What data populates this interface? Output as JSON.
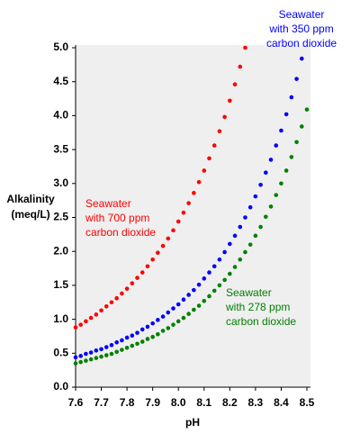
{
  "chart_data": {
    "type": "scatter",
    "xlabel": "pH",
    "ylabel": "Alkalinity (meq/L)",
    "x": [
      7.6,
      7.62,
      7.64,
      7.66,
      7.68,
      7.7,
      7.72,
      7.74,
      7.76,
      7.78,
      7.8,
      7.82,
      7.84,
      7.86,
      7.88,
      7.9,
      7.92,
      7.94,
      7.96,
      7.98,
      8.0,
      8.02,
      8.04,
      8.06,
      8.08,
      8.1,
      8.12,
      8.14,
      8.16,
      8.18,
      8.2,
      8.22,
      8.24,
      8.26,
      8.28,
      8.3,
      8.32,
      8.34,
      8.36,
      8.38,
      8.4,
      8.42,
      8.44,
      8.46,
      8.48,
      8.5
    ],
    "series": [
      {
        "color": "#ff0000",
        "values": [
          0.88,
          0.92,
          0.97,
          1.02,
          1.07,
          1.13,
          1.19,
          1.25,
          1.31,
          1.38,
          1.45,
          1.53,
          1.61,
          1.69,
          1.78,
          1.88,
          1.98,
          2.08,
          2.19,
          2.31,
          2.44,
          2.57,
          2.71,
          2.86,
          3.02,
          3.19,
          3.37,
          3.56,
          3.77,
          3.98,
          4.22,
          4.46,
          4.72,
          5.0,
          null,
          null,
          null,
          null,
          null,
          null,
          null,
          null,
          null,
          null,
          null,
          null
        ]
      },
      {
        "color": "#0000ff",
        "values": [
          0.44,
          0.46,
          0.49,
          0.51,
          0.54,
          0.56,
          0.59,
          0.62,
          0.66,
          0.69,
          0.73,
          0.76,
          0.8,
          0.85,
          0.89,
          0.94,
          0.99,
          1.04,
          1.1,
          1.16,
          1.22,
          1.29,
          1.36,
          1.43,
          1.51,
          1.6,
          1.69,
          1.78,
          1.88,
          1.99,
          2.11,
          2.23,
          2.36,
          2.5,
          2.65,
          2.81,
          2.98,
          3.16,
          3.35,
          3.56,
          3.78,
          4.02,
          4.27,
          4.54,
          4.84,
          null
        ]
      },
      {
        "color": "#008000",
        "values": [
          0.35,
          0.37,
          0.39,
          0.41,
          0.43,
          0.45,
          0.47,
          0.49,
          0.52,
          0.55,
          0.58,
          0.61,
          0.64,
          0.67,
          0.71,
          0.74,
          0.78,
          0.83,
          0.87,
          0.92,
          0.97,
          1.02,
          1.08,
          1.14,
          1.2,
          1.27,
          1.34,
          1.42,
          1.5,
          1.58,
          1.67,
          1.77,
          1.88,
          1.99,
          2.1,
          2.23,
          2.36,
          2.51,
          2.66,
          2.83,
          3.0,
          3.19,
          3.39,
          3.61,
          3.84,
          4.09
        ]
      }
    ],
    "annotations": [
      {
        "lines": [
          "Seawater",
          "with 700 ppm",
          "carbon dioxide"
        ],
        "color": "#ff0000"
      },
      {
        "lines": [
          "Seawater",
          "with 350 ppm",
          "carbon dioxide"
        ],
        "color": "#0000ff"
      },
      {
        "lines": [
          "Seawater",
          "with 278 ppm",
          "carbon dioxide"
        ],
        "color": "#008000"
      }
    ],
    "xlim": [
      7.6,
      8.5
    ],
    "xticks": [
      7.6,
      7.7,
      7.8,
      7.9,
      {
        "value": 8,
        "label": "8.0"
      },
      8.1,
      8.2,
      8.3,
      8.4,
      8.5
    ],
    "ylim": [
      0,
      5
    ],
    "yticks": [
      {
        "value": 0,
        "label": "0.0"
      },
      0.5,
      {
        "value": 1,
        "label": "1.0"
      },
      1.5,
      {
        "value": 2,
        "label": "2.0"
      },
      2.5,
      {
        "value": 3,
        "label": "3.0"
      },
      3.5,
      {
        "value": 4,
        "label": "4.0"
      },
      4.5,
      {
        "value": 5,
        "label": "5.0"
      }
    ],
    "plot_background": "#efefef"
  }
}
